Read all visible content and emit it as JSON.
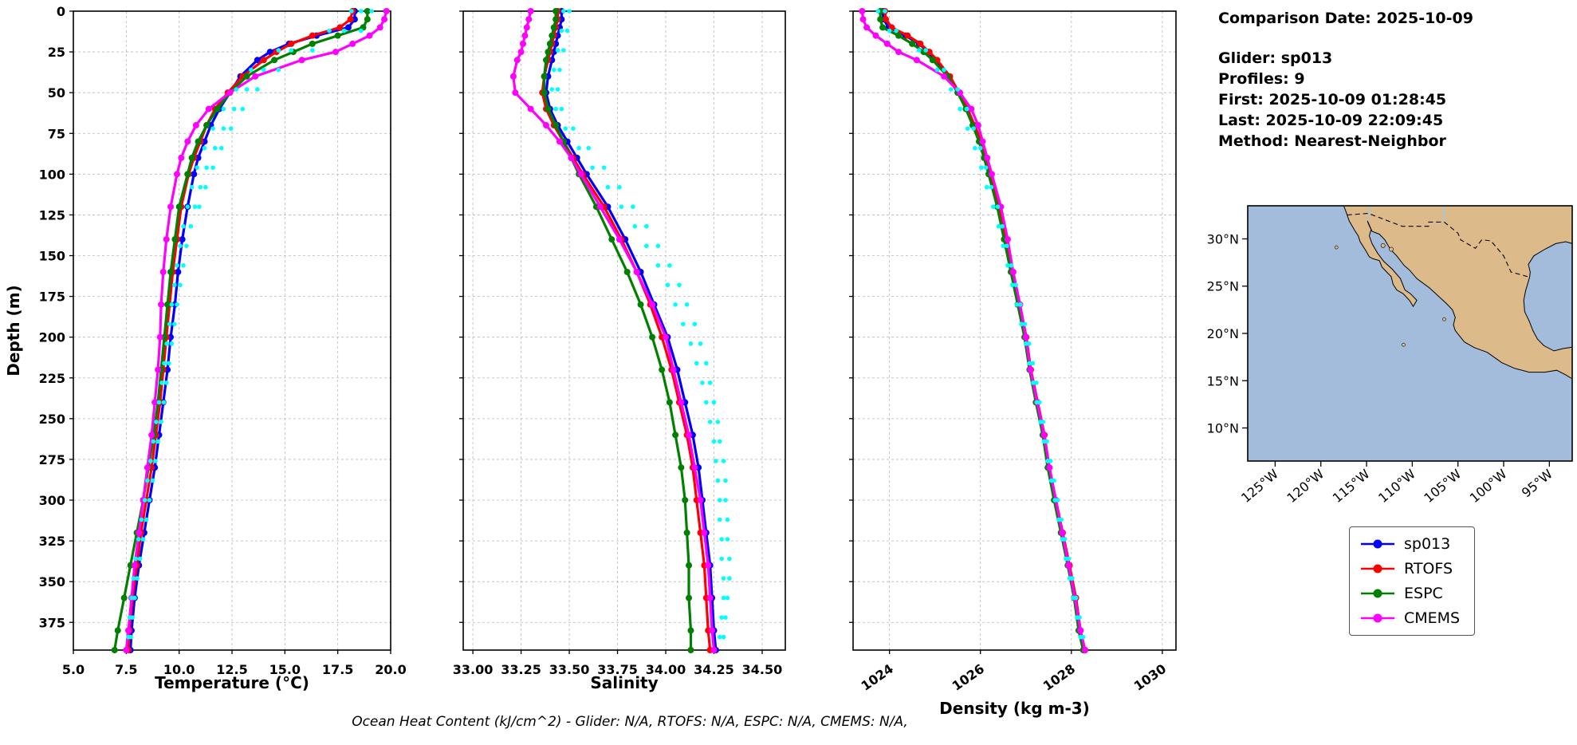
{
  "info": {
    "comparison_date": "Comparison Date: 2025-10-09",
    "lines": [
      "Glider: sp013",
      "Profiles: 9",
      "First: 2025-10-09 01:28:45",
      "Last: 2025-10-09 22:09:45",
      "Method: Nearest-Neighbor"
    ]
  },
  "footer": {
    "text": "Ocean Heat Content (kJ/cm^2) - Glider: N/A,  RTOFS: N/A,  ESPC: N/A,  CMEMS: N/A,"
  },
  "map": {
    "ocean_color": "#a3bcdc",
    "land_color": "#ddba8a",
    "lat_ticks": [
      {
        "v": 30,
        "label": "30°N"
      },
      {
        "v": 25,
        "label": "25°N"
      },
      {
        "v": 20,
        "label": "20°N"
      },
      {
        "v": 15,
        "label": "15°N"
      },
      {
        "v": 10,
        "label": "10°N"
      }
    ],
    "lon_ticks": [
      {
        "v": -125,
        "label": "125°W"
      },
      {
        "v": -120,
        "label": "120°W"
      },
      {
        "v": -115,
        "label": "115°W"
      },
      {
        "v": -110,
        "label": "110°W"
      },
      {
        "v": -105,
        "label": "105°W"
      },
      {
        "v": -100,
        "label": "100°W"
      },
      {
        "v": -95,
        "label": "95°W"
      }
    ]
  },
  "chart_data": {
    "type": "line",
    "title": "",
    "legend_position": "below map, right side",
    "grid": true,
    "depth_axis": {
      "label": "Depth (m)",
      "lim": [
        0,
        392
      ],
      "ticks": [
        0,
        25,
        50,
        75,
        100,
        125,
        150,
        175,
        200,
        225,
        250,
        275,
        300,
        325,
        350,
        375
      ]
    },
    "series_names": [
      "sp013",
      "RTOFS",
      "ESPC",
      "CMEMS"
    ],
    "series_colors": {
      "sp013": "#0000ff",
      "RTOFS": "#ff0000",
      "ESPC": "#008000",
      "CMEMS": "#ff00ff"
    },
    "scatter_color": "#00ffff",
    "scatter_name": "glider-raw-observations",
    "depths": [
      0,
      5,
      10,
      15,
      20,
      25,
      30,
      40,
      50,
      60,
      70,
      80,
      90,
      100,
      120,
      140,
      160,
      180,
      200,
      220,
      240,
      260,
      280,
      300,
      320,
      340,
      360,
      380,
      392
    ],
    "scatter_depths": [
      0,
      12,
      24,
      36,
      48,
      60,
      72,
      84,
      96,
      108,
      120,
      132,
      144,
      156,
      168,
      180,
      192,
      204,
      216,
      228,
      240,
      252,
      264,
      276,
      288,
      300,
      312,
      324,
      336,
      348,
      360,
      372,
      384
    ],
    "charts": [
      {
        "id": "temperature",
        "xlabel": "Temperature (°C)",
        "xlim": [
          5.0,
          20.0
        ],
        "xticks": [
          5.0,
          7.5,
          10.0,
          12.5,
          15.0,
          17.5,
          20.0
        ],
        "xtick_labels": [
          "5.0",
          "7.5",
          "10.0",
          "12.5",
          "15.0",
          "17.5",
          "20.0"
        ],
        "series": {
          "sp013": [
            18.3,
            18.3,
            18.0,
            16.5,
            15.2,
            14.3,
            13.7,
            12.9,
            12.4,
            11.9,
            11.5,
            11.2,
            10.9,
            10.7,
            10.4,
            10.15,
            9.95,
            9.8,
            9.6,
            9.45,
            9.25,
            9.05,
            8.85,
            8.6,
            8.35,
            8.1,
            7.9,
            7.75,
            7.7
          ],
          "RTOFS": [
            18.2,
            18.1,
            17.6,
            16.3,
            15.3,
            14.6,
            14.0,
            13.0,
            12.3,
            11.7,
            11.3,
            11.0,
            10.7,
            10.45,
            10.1,
            9.9,
            9.7,
            9.55,
            9.4,
            9.25,
            9.1,
            8.9,
            8.7,
            8.45,
            8.2,
            8.0,
            7.8,
            7.65,
            7.6
          ],
          "ESPC": [
            18.9,
            18.9,
            18.7,
            17.5,
            16.3,
            15.4,
            14.5,
            13.2,
            12.4,
            11.8,
            11.3,
            10.9,
            10.6,
            10.4,
            10.0,
            9.8,
            9.6,
            9.45,
            9.3,
            9.15,
            9.0,
            8.8,
            8.55,
            8.3,
            8.0,
            7.7,
            7.4,
            7.1,
            6.95
          ],
          "CMEMS": [
            19.8,
            19.7,
            19.5,
            19.0,
            18.2,
            17.4,
            15.8,
            13.6,
            12.4,
            11.4,
            10.8,
            10.4,
            10.1,
            9.9,
            9.6,
            9.4,
            9.25,
            9.15,
            9.1,
            9.0,
            8.85,
            8.7,
            8.5,
            8.3,
            8.1,
            7.9,
            7.75,
            7.6,
            7.5
          ]
        },
        "scatter": [
          {
            "values": [
              18.6,
              17.8,
              15.3,
              14.0,
              13.2,
              12.6,
              12.1,
              11.7,
              11.3,
              11.0,
              10.75,
              10.55,
              10.35,
              10.2,
              10.05,
              9.9,
              9.78,
              9.65,
              9.52,
              9.4,
              9.28,
              9.15,
              9.0,
              8.88,
              8.75,
              8.6,
              8.45,
              8.3,
              8.15,
              8.02,
              7.9,
              7.8,
              7.72
            ]
          },
          {
            "values": [
              18.15,
              17.1,
              14.7,
              13.4,
              12.7,
              12.1,
              11.6,
              11.2,
              10.85,
              10.6,
              10.4,
              10.2,
              10.05,
              9.9,
              9.78,
              9.65,
              9.55,
              9.42,
              9.3,
              9.18,
              9.05,
              8.92,
              8.78,
              8.65,
              8.5,
              8.38,
              8.22,
              8.08,
              7.95,
              7.85,
              7.75,
              7.66,
              7.6
            ]
          },
          {
            "depths": [
              0,
              12,
              24,
              36,
              48,
              60,
              72,
              84,
              96,
              108,
              120
            ],
            "values": [
              19.1,
              18.6,
              16.3,
              14.7,
              13.7,
              13.0,
              12.45,
              12.0,
              11.6,
              11.25,
              10.95
            ]
          }
        ]
      },
      {
        "id": "salinity",
        "xlabel": "Salinity",
        "xlim": [
          32.95,
          34.62
        ],
        "xticks": [
          33.0,
          33.25,
          33.5,
          33.75,
          34.0,
          34.25,
          34.5
        ],
        "xtick_labels": [
          "33.00",
          "33.25",
          "33.50",
          "33.75",
          "34.00",
          "34.25",
          "34.50"
        ],
        "series": {
          "sp013": [
            33.46,
            33.46,
            33.45,
            33.44,
            33.43,
            33.42,
            33.41,
            33.39,
            33.38,
            33.4,
            33.44,
            33.49,
            33.54,
            33.59,
            33.7,
            33.79,
            33.87,
            33.94,
            34.01,
            34.06,
            34.1,
            34.14,
            34.17,
            34.19,
            34.21,
            34.23,
            34.24,
            34.25,
            34.26
          ],
          "RTOFS": [
            33.44,
            33.44,
            33.43,
            33.42,
            33.41,
            33.4,
            33.39,
            33.37,
            33.36,
            33.38,
            33.42,
            33.47,
            33.52,
            33.57,
            33.68,
            33.77,
            33.85,
            33.92,
            33.98,
            34.03,
            34.07,
            34.11,
            34.14,
            34.16,
            34.18,
            34.2,
            34.21,
            34.22,
            34.23
          ],
          "ESPC": [
            33.43,
            33.43,
            33.42,
            33.41,
            33.4,
            33.39,
            33.38,
            33.37,
            33.37,
            33.39,
            33.43,
            33.47,
            33.51,
            33.55,
            33.64,
            33.72,
            33.8,
            33.87,
            33.93,
            33.98,
            34.02,
            34.05,
            34.08,
            34.1,
            34.11,
            34.12,
            34.12,
            34.13,
            34.13
          ],
          "CMEMS": [
            33.3,
            33.29,
            33.28,
            33.27,
            33.26,
            33.25,
            33.23,
            33.21,
            33.22,
            33.3,
            33.38,
            33.45,
            33.51,
            33.56,
            33.66,
            33.76,
            33.85,
            33.93,
            34.0,
            34.04,
            34.08,
            34.12,
            34.15,
            34.18,
            34.2,
            34.22,
            34.23,
            34.24,
            34.25
          ]
        },
        "scatter": [
          {
            "values": [
              33.5,
              33.49,
              33.47,
              33.45,
              33.44,
              33.46,
              33.52,
              33.6,
              33.68,
              33.76,
              33.83,
              33.9,
              33.96,
              34.02,
              34.07,
              34.11,
              34.15,
              34.18,
              34.21,
              34.23,
              34.25,
              34.27,
              34.28,
              34.3,
              34.31,
              34.31,
              34.32,
              34.32,
              34.33,
              34.33,
              34.32,
              34.31,
              34.3
            ]
          },
          {
            "values": [
              33.47,
              33.46,
              33.44,
              33.42,
              33.41,
              33.43,
              33.48,
              33.55,
              33.62,
              33.7,
              33.77,
              33.84,
              33.9,
              33.96,
              34.01,
              34.05,
              34.09,
              34.13,
              34.16,
              34.19,
              34.21,
              34.23,
              34.25,
              34.26,
              34.27,
              34.28,
              34.28,
              34.29,
              34.29,
              34.3,
              34.3,
              34.29,
              34.28
            ]
          }
        ]
      },
      {
        "id": "density",
        "xlabel": "Density (kg m-3)",
        "xlim": [
          1023.2,
          1030.3
        ],
        "xticks": [
          1024,
          1026,
          1028,
          1030
        ],
        "xtick_labels": [
          "1024",
          "1026",
          "1028",
          "1030"
        ],
        "series": {
          "sp013": [
            1023.85,
            1023.87,
            1023.98,
            1024.35,
            1024.65,
            1024.85,
            1025.0,
            1025.3,
            1025.5,
            1025.7,
            1025.85,
            1026.0,
            1026.1,
            1026.2,
            1026.4,
            1026.55,
            1026.7,
            1026.85,
            1027.0,
            1027.1,
            1027.25,
            1027.4,
            1027.5,
            1027.65,
            1027.8,
            1027.95,
            1028.1,
            1028.2,
            1028.3
          ],
          "RTOFS": [
            1023.9,
            1023.92,
            1024.05,
            1024.4,
            1024.68,
            1024.88,
            1025.05,
            1025.33,
            1025.53,
            1025.72,
            1025.87,
            1026.02,
            1026.12,
            1026.22,
            1026.42,
            1026.57,
            1026.72,
            1026.87,
            1027.01,
            1027.11,
            1027.26,
            1027.41,
            1027.51,
            1027.66,
            1027.81,
            1027.96,
            1028.1,
            1028.2,
            1028.3
          ],
          "ESPC": [
            1023.8,
            1023.8,
            1023.85,
            1024.2,
            1024.5,
            1024.75,
            1024.95,
            1025.28,
            1025.5,
            1025.68,
            1025.83,
            1025.97,
            1026.08,
            1026.18,
            1026.37,
            1026.52,
            1026.67,
            1026.82,
            1026.97,
            1027.08,
            1027.22,
            1027.37,
            1027.48,
            1027.62,
            1027.77,
            1027.92,
            1028.06,
            1028.16,
            1028.26
          ],
          "CMEMS": [
            1023.4,
            1023.42,
            1023.5,
            1023.7,
            1023.95,
            1024.2,
            1024.6,
            1025.2,
            1025.55,
            1025.8,
            1025.95,
            1026.05,
            1026.15,
            1026.25,
            1026.45,
            1026.6,
            1026.72,
            1026.87,
            1027.0,
            1027.1,
            1027.25,
            1027.4,
            1027.52,
            1027.66,
            1027.8,
            1027.94,
            1028.08,
            1028.2,
            1028.3
          ]
        },
        "scatter": [
          {
            "values": [
              1023.9,
              1024.15,
              1024.8,
              1025.2,
              1025.5,
              1025.7,
              1025.85,
              1026.0,
              1026.12,
              1026.24,
              1026.38,
              1026.48,
              1026.58,
              1026.68,
              1026.78,
              1026.88,
              1026.98,
              1027.07,
              1027.15,
              1027.23,
              1027.3,
              1027.38,
              1027.46,
              1027.54,
              1027.62,
              1027.7,
              1027.78,
              1027.86,
              1027.94,
              1028.02,
              1028.1,
              1028.18,
              1028.26
            ]
          },
          {
            "values": [
              1023.75,
              1024.0,
              1024.65,
              1025.05,
              1025.35,
              1025.55,
              1025.72,
              1025.88,
              1026.02,
              1026.14,
              1026.28,
              1026.4,
              1026.5,
              1026.6,
              1026.7,
              1026.8,
              1026.9,
              1027.0,
              1027.08,
              1027.16,
              1027.24,
              1027.32,
              1027.4,
              1027.48,
              1027.56,
              1027.64,
              1027.72,
              1027.8,
              1027.88,
              1027.96,
              1028.04,
              1028.12,
              1028.2
            ]
          }
        ]
      }
    ]
  }
}
